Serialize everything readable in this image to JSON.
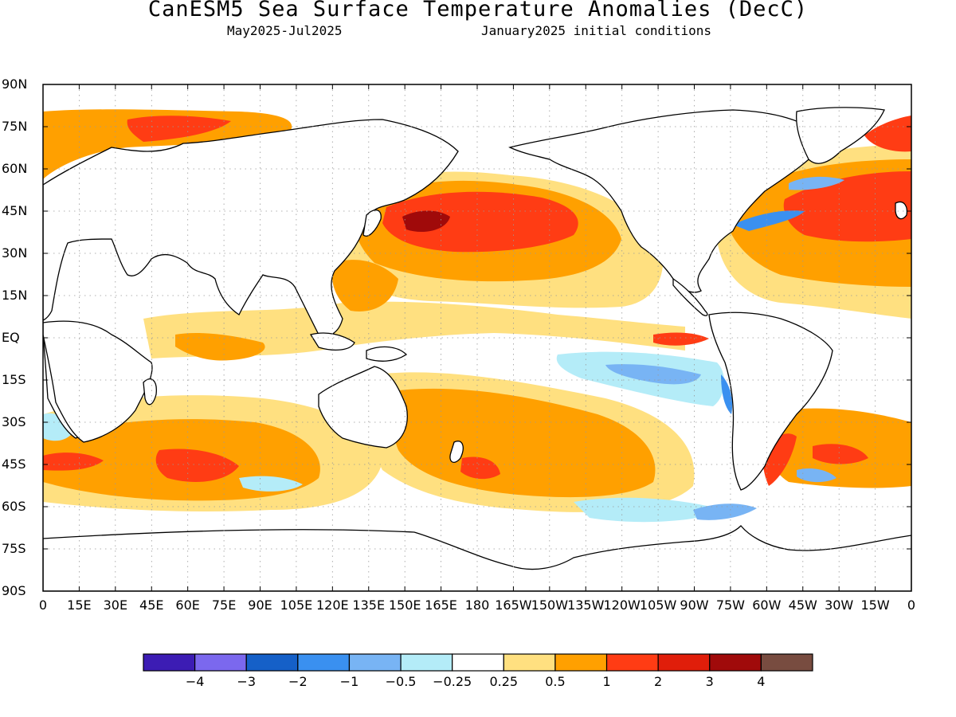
{
  "title": "CanESM5 Sea Surface Temperature Anomalies (DecC)",
  "subtitle_left": "May2025-Jul2025",
  "subtitle_right": "January2025 initial conditions",
  "lat_labels": [
    "90N",
    "75N",
    "60N",
    "45N",
    "30N",
    "15N",
    "EQ",
    "15S",
    "30S",
    "45S",
    "60S",
    "75S",
    "90S"
  ],
  "lon_labels": [
    "0",
    "15E",
    "30E",
    "45E",
    "60E",
    "75E",
    "90E",
    "105E",
    "120E",
    "135E",
    "150E",
    "165E",
    "180",
    "165W",
    "150W",
    "135W",
    "120W",
    "105W",
    "90W",
    "75W",
    "60W",
    "45W",
    "30W",
    "15W",
    "0"
  ],
  "colorbar": {
    "colors": [
      "#3c1cb4",
      "#7b68ee",
      "#1560c8",
      "#3a90f0",
      "#78b4f4",
      "#b4ecf8",
      "#ffffff",
      "#ffe080",
      "#ffa000",
      "#ff3c14",
      "#e01e0a",
      "#a00a0a",
      "#784c40"
    ],
    "labels": [
      "-4",
      "-3",
      "-2",
      "-1",
      "-0.5",
      "-0.25",
      "0.25",
      "0.5",
      "1",
      "2",
      "3",
      "4"
    ]
  },
  "colors": {
    "land": "#ffffff",
    "coastline": "#000000",
    "grid": "#999999"
  }
}
